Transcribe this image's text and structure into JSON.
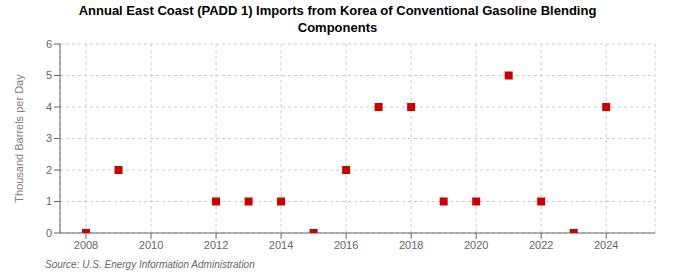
{
  "chart_data": {
    "type": "scatter",
    "title": "Annual East Coast (PADD 1) Imports from Korea of Conventional Gasoline Blending",
    "subtitle": "Components",
    "ylabel": "Thousand Barrels per Day",
    "source": "Source: U.S. Energy Information Administration",
    "x": [
      2008,
      2009,
      2012,
      2013,
      2014,
      2015,
      2016,
      2017,
      2018,
      2019,
      2020,
      2021,
      2022,
      2023,
      2024
    ],
    "values": [
      0,
      2,
      1,
      1,
      1,
      0,
      2,
      4,
      4,
      1,
      1,
      5,
      1,
      0,
      4
    ],
    "color": "#cc0000",
    "marker": "square",
    "xlim": [
      2007.2,
      2025.5
    ],
    "ylim": [
      0,
      6
    ],
    "xticks": [
      2008,
      2010,
      2012,
      2014,
      2016,
      2018,
      2020,
      2022,
      2024
    ],
    "yticks": [
      0,
      1,
      2,
      3,
      4,
      5,
      6
    ],
    "grid": true
  }
}
